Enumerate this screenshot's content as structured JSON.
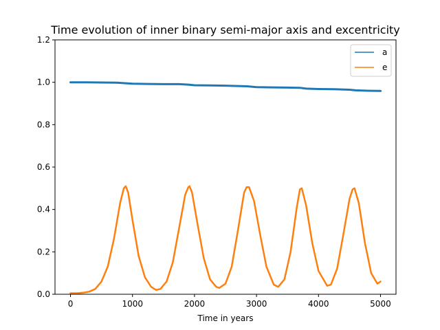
{
  "chart_data": {
    "type": "line",
    "title": "Time evolution of inner binary semi-major axis and excentricity",
    "xlabel": "Time in years",
    "ylabel": "",
    "xlim": [
      -250,
      5250
    ],
    "ylim": [
      0.0,
      1.2
    ],
    "x_ticks": [
      0,
      1000,
      2000,
      3000,
      4000,
      5000
    ],
    "y_ticks": [
      0.0,
      0.2,
      0.4,
      0.6,
      0.8,
      1.0,
      1.2
    ],
    "x_tick_labels": [
      "0",
      "1000",
      "2000",
      "3000",
      "4000",
      "5000"
    ],
    "y_tick_labels": [
      "0.0",
      "0.2",
      "0.4",
      "0.6",
      "0.8",
      "1.0",
      "1.2"
    ],
    "grid": false,
    "legend": "top-right",
    "series": [
      {
        "name": "a",
        "color": "#1f77b4",
        "x": [
          0,
          250,
          500,
          750,
          850,
          1000,
          1250,
          1500,
          1750,
          1900,
          2000,
          2250,
          2500,
          2750,
          2850,
          3000,
          3250,
          3500,
          3700,
          3800,
          4000,
          4250,
          4500,
          4600,
          4800,
          5000
        ],
        "y": [
          1.0,
          1.0,
          0.999,
          0.998,
          0.996,
          0.993,
          0.992,
          0.991,
          0.991,
          0.989,
          0.986,
          0.985,
          0.984,
          0.982,
          0.981,
          0.977,
          0.976,
          0.975,
          0.974,
          0.97,
          0.968,
          0.967,
          0.965,
          0.962,
          0.96,
          0.959
        ]
      },
      {
        "name": "e",
        "color": "#ff7f0e",
        "x": [
          0,
          100,
          200,
          300,
          400,
          500,
          600,
          700,
          800,
          860,
          890,
          930,
          1000,
          1100,
          1200,
          1300,
          1380,
          1450,
          1550,
          1650,
          1750,
          1850,
          1900,
          1920,
          1960,
          2050,
          2150,
          2250,
          2350,
          2400,
          2500,
          2600,
          2700,
          2800,
          2840,
          2880,
          2960,
          3060,
          3160,
          3280,
          3350,
          3450,
          3550,
          3650,
          3700,
          3730,
          3800,
          3900,
          4000,
          4140,
          4200,
          4300,
          4400,
          4500,
          4550,
          4580,
          4650,
          4750,
          4850,
          4950,
          5000
        ],
        "y": [
          0.005,
          0.005,
          0.007,
          0.012,
          0.025,
          0.06,
          0.13,
          0.26,
          0.43,
          0.5,
          0.51,
          0.48,
          0.35,
          0.18,
          0.08,
          0.035,
          0.02,
          0.025,
          0.06,
          0.15,
          0.31,
          0.47,
          0.505,
          0.51,
          0.48,
          0.33,
          0.17,
          0.07,
          0.035,
          0.03,
          0.05,
          0.13,
          0.3,
          0.48,
          0.505,
          0.505,
          0.44,
          0.28,
          0.13,
          0.045,
          0.035,
          0.07,
          0.2,
          0.41,
          0.495,
          0.5,
          0.42,
          0.24,
          0.11,
          0.04,
          0.045,
          0.12,
          0.28,
          0.45,
          0.495,
          0.5,
          0.43,
          0.24,
          0.1,
          0.05,
          0.06
        ]
      }
    ]
  }
}
